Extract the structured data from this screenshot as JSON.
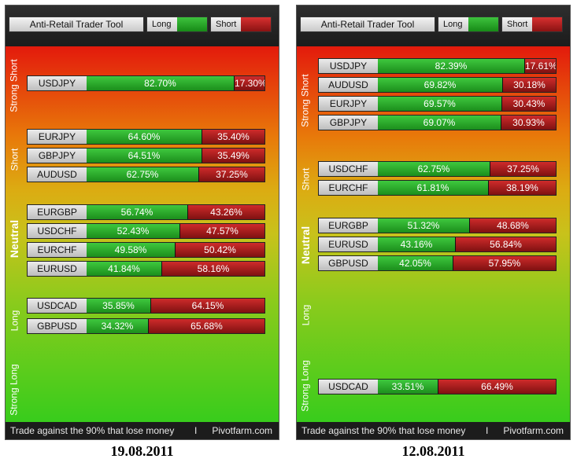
{
  "colors": {
    "long": "#2eb82e",
    "short": "#b31f1f",
    "strong_short": "#e31a0c",
    "strong_long": "#38cc1c"
  },
  "panels": [
    {
      "title": "Anti-Retail Trader Tool",
      "legend_long": "Long",
      "legend_short": "Short",
      "zones": {
        "strong_short": "Strong Short",
        "short": "Short",
        "neutral": "Neutral",
        "long": "Long",
        "strong_long": "Strong Long"
      },
      "rows": [
        {
          "pair": "USDJPY",
          "long": "82.70%",
          "short": "17.30%",
          "long_pct": 82.7
        },
        {
          "pair": "EURJPY",
          "long": "64.60%",
          "short": "35.40%",
          "long_pct": 64.6
        },
        {
          "pair": "GBPJPY",
          "long": "64.51%",
          "short": "35.49%",
          "long_pct": 64.51
        },
        {
          "pair": "AUDUSD",
          "long": "62.75%",
          "short": "37.25%",
          "long_pct": 62.75
        },
        {
          "pair": "EURGBP",
          "long": "56.74%",
          "short": "43.26%",
          "long_pct": 56.74
        },
        {
          "pair": "USDCHF",
          "long": "52.43%",
          "short": "47.57%",
          "long_pct": 52.43
        },
        {
          "pair": "EURCHF",
          "long": "49.58%",
          "short": "50.42%",
          "long_pct": 49.58
        },
        {
          "pair": "EURUSD",
          "long": "41.84%",
          "short": "58.16%",
          "long_pct": 41.84
        },
        {
          "pair": "USDCAD",
          "long": "35.85%",
          "short": "64.15%",
          "long_pct": 35.85
        },
        {
          "pair": "GBPUSD",
          "long": "34.32%",
          "short": "65.68%",
          "long_pct": 34.32
        }
      ],
      "footer_tagline": "Trade against the 90% that lose money",
      "footer_sep": "I",
      "footer_site": "Pivotfarm.com",
      "date": "19.08.2011"
    },
    {
      "title": "Anti-Retail Trader Tool",
      "legend_long": "Long",
      "legend_short": "Short",
      "zones": {
        "strong_short": "Strong Short",
        "short": "Short",
        "neutral": "Neutral",
        "long": "Long",
        "strong_long": "Strong Long"
      },
      "rows": [
        {
          "pair": "USDJPY",
          "long": "82.39%",
          "short": "17.61%",
          "long_pct": 82.39
        },
        {
          "pair": "AUDUSD",
          "long": "69.82%",
          "short": "30.18%",
          "long_pct": 69.82
        },
        {
          "pair": "EURJPY",
          "long": "69.57%",
          "short": "30.43%",
          "long_pct": 69.57
        },
        {
          "pair": "GBPJPY",
          "long": "69.07%",
          "short": "30.93%",
          "long_pct": 69.07
        },
        {
          "pair": "USDCHF",
          "long": "62.75%",
          "short": "37.25%",
          "long_pct": 62.75
        },
        {
          "pair": "EURCHF",
          "long": "61.81%",
          "short": "38.19%",
          "long_pct": 61.81
        },
        {
          "pair": "EURGBP",
          "long": "51.32%",
          "short": "48.68%",
          "long_pct": 51.32
        },
        {
          "pair": "EURUSD",
          "long": "43.16%",
          "short": "56.84%",
          "long_pct": 43.16
        },
        {
          "pair": "GBPUSD",
          "long": "42.05%",
          "short": "57.95%",
          "long_pct": 42.05
        },
        {
          "pair": "USDCAD",
          "long": "33.51%",
          "short": "66.49%",
          "long_pct": 33.51
        }
      ],
      "footer_tagline": "Trade against the 90% that lose money",
      "footer_sep": "I",
      "footer_site": "Pivotfarm.com",
      "date": "12.08.2011"
    }
  ]
}
